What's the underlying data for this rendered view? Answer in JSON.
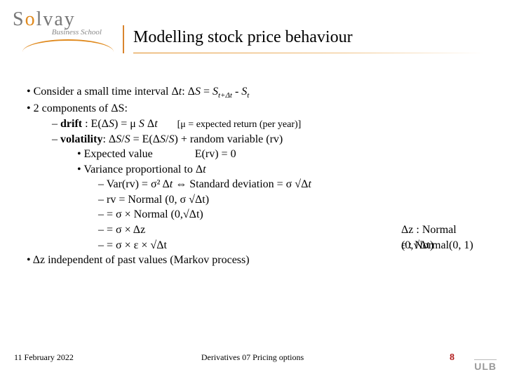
{
  "logo": {
    "name": "Solvay",
    "sub": "Business School"
  },
  "title": "Modelling stock price behaviour",
  "points": {
    "p1_a": "Consider a small time interval Δ",
    "p1_b": ": Δ",
    "p1_c": " = ",
    "p1_sub1": "t+Δt",
    "p1_d": " - ",
    "p1_sub2": "t",
    "p2": "2 components of ΔS:",
    "drift_a": "drift",
    "drift_b": " : E(Δ",
    "drift_c": ") = μ ",
    "drift_d": " Δ",
    "drift_note": "[μ = expected return (per year)]",
    "vol_a": "volatility",
    "vol_b": ": Δ",
    "vol_c": "/",
    "vol_d": " = E(Δ",
    "vol_e": "/",
    "vol_f": ") + random variable (rv)",
    "ev_a": "Expected value",
    "ev_b": "E(rv) = 0",
    "var_a": "Variance proportional to Δ",
    "var1_a": "Var(rv) = σ² Δ",
    "var1_b": " ⇔ Standard deviation  = σ √Δ",
    "var2": "rv = Normal (0, σ √Δt)",
    "var3": "    = σ  × Normal (0,√Δt)",
    "var4_a": "    = σ × Δz",
    "var4_b": "Δz : Normal (0,√Δt)",
    "var5_a": "    = σ × ε × √Δt",
    "var5_b": "ε : Normal(0, 1)",
    "p3": "Δz independent of past values (Markov process)"
  },
  "footer": {
    "date": "11 February 2022",
    "center": "Derivatives 07 Pricing options",
    "page": "8",
    "ulb": "ULB"
  },
  "colors": {
    "accent": "#e08a1e",
    "pagenum": "#b01818"
  }
}
